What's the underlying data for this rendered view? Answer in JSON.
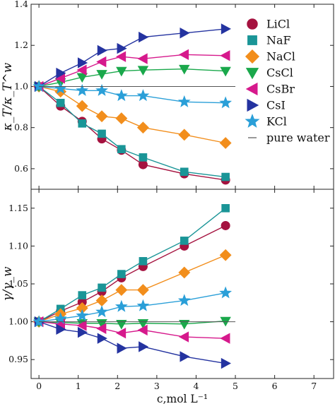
{
  "chart_data": [
    {
      "type": "line",
      "ylabel": "κ_T/κ_T^w",
      "ylim": [
        0.5,
        1.4
      ],
      "xlim": [
        -0.2,
        7.5
      ],
      "yticks": [
        "0.6",
        "0.8",
        "1.0",
        "1.2",
        "1.4"
      ],
      "grid": false,
      "legend_position": "right",
      "series": [
        {
          "name": "LiCl",
          "color": "#a5123f",
          "marker": "circle",
          "x": [
            0,
            0.55,
            1.1,
            1.6,
            2.1,
            2.65,
            3.7,
            4.75
          ],
          "y": [
            1.0,
            0.905,
            0.83,
            0.745,
            0.69,
            0.62,
            0.575,
            0.545
          ]
        },
        {
          "name": "NaF",
          "color": "#1a9597",
          "marker": "square",
          "x": [
            0,
            0.55,
            1.1,
            1.6,
            2.1,
            2.65,
            3.7,
            4.75
          ],
          "y": [
            1.0,
            0.92,
            0.82,
            0.77,
            0.695,
            0.655,
            0.585,
            0.56
          ]
        },
        {
          "name": "NaCl",
          "color": "#f28e1c",
          "marker": "diamond",
          "x": [
            0,
            0.55,
            1.1,
            1.6,
            2.1,
            2.65,
            3.7,
            4.75
          ],
          "y": [
            1.0,
            0.975,
            0.905,
            0.855,
            0.845,
            0.8,
            0.765,
            0.725
          ]
        },
        {
          "name": "CsCl",
          "color": "#1aa84b",
          "marker": "triangle-down",
          "x": [
            0,
            0.55,
            1.1,
            1.6,
            2.1,
            2.65,
            3.7,
            4.75
          ],
          "y": [
            1.0,
            1.02,
            1.045,
            1.06,
            1.075,
            1.08,
            1.085,
            1.075
          ]
        },
        {
          "name": "CsBr",
          "color": "#d6198c",
          "marker": "triangle-left",
          "x": [
            0,
            0.55,
            1.1,
            1.6,
            2.1,
            2.65,
            3.7,
            4.75
          ],
          "y": [
            1.0,
            1.04,
            1.08,
            1.12,
            1.145,
            1.135,
            1.155,
            1.15
          ]
        },
        {
          "name": "CsI",
          "color": "#2433a0",
          "marker": "triangle-right",
          "x": [
            0,
            0.55,
            1.1,
            1.6,
            2.1,
            2.65,
            3.7,
            4.75
          ],
          "y": [
            1.0,
            1.065,
            1.115,
            1.175,
            1.185,
            1.24,
            1.26,
            1.28
          ]
        },
        {
          "name": "KCl",
          "color": "#2a9fd8",
          "marker": "star",
          "x": [
            0,
            0.55,
            1.1,
            1.6,
            2.1,
            2.65,
            3.7,
            4.75
          ],
          "y": [
            1.0,
            0.99,
            0.98,
            0.98,
            0.955,
            0.955,
            0.925,
            0.92
          ]
        },
        {
          "name": "pure water",
          "color": "#777777",
          "marker": "none",
          "x": [
            0,
            5
          ],
          "y": [
            1.0,
            1.0
          ]
        }
      ]
    },
    {
      "type": "line",
      "ylabel": "γ/γ_w",
      "xlabel": "c,mol L⁻¹",
      "ylim": [
        0.925,
        1.175
      ],
      "xlim": [
        -0.2,
        7.5
      ],
      "xticks": [
        "0",
        "1",
        "2",
        "3",
        "4",
        "5",
        "6",
        "7"
      ],
      "yticks": [
        "0.95",
        "1.00",
        "1.05",
        "1.10",
        "1.15"
      ],
      "grid": false,
      "series": [
        {
          "name": "LiCl",
          "color": "#a5123f",
          "marker": "circle",
          "x": [
            0,
            0.55,
            1.1,
            1.6,
            2.1,
            2.65,
            3.7,
            4.75
          ],
          "y": [
            1.0,
            1.014,
            1.026,
            1.04,
            1.058,
            1.073,
            1.1,
            1.127
          ]
        },
        {
          "name": "NaF",
          "color": "#1a9597",
          "marker": "square",
          "x": [
            0,
            0.55,
            1.1,
            1.6,
            2.1,
            2.65,
            3.7,
            4.75
          ],
          "y": [
            1.0,
            1.017,
            1.035,
            1.045,
            1.063,
            1.08,
            1.107,
            1.15
          ]
        },
        {
          "name": "NaCl",
          "color": "#f28e1c",
          "marker": "diamond",
          "x": [
            0,
            0.55,
            1.1,
            1.6,
            2.1,
            2.65,
            3.7,
            4.75
          ],
          "y": [
            1.0,
            1.01,
            1.018,
            1.028,
            1.042,
            1.042,
            1.065,
            1.088
          ]
        },
        {
          "name": "CsCl",
          "color": "#1aa84b",
          "marker": "triangle-down",
          "x": [
            0,
            0.55,
            1.1,
            1.6,
            2.1,
            2.65,
            3.7,
            4.75
          ],
          "y": [
            1.0,
            0.999,
            0.998,
            0.998,
            0.997,
            0.998,
            0.997,
            1.001
          ]
        },
        {
          "name": "CsBr",
          "color": "#d6198c",
          "marker": "triangle-left",
          "x": [
            0,
            0.55,
            1.1,
            1.6,
            2.1,
            2.65,
            3.7,
            4.75
          ],
          "y": [
            1.0,
            0.997,
            0.995,
            0.991,
            0.985,
            0.989,
            0.98,
            0.978
          ]
        },
        {
          "name": "CsI",
          "color": "#2433a0",
          "marker": "triangle-right",
          "x": [
            0,
            0.55,
            1.1,
            1.6,
            2.1,
            2.65,
            3.7,
            4.75
          ],
          "y": [
            1.0,
            0.99,
            0.986,
            0.978,
            0.965,
            0.967,
            0.954,
            0.945
          ]
        },
        {
          "name": "KCl",
          "color": "#2a9fd8",
          "marker": "star",
          "x": [
            0,
            0.55,
            1.1,
            1.6,
            2.1,
            2.65,
            3.7,
            4.75
          ],
          "y": [
            1.0,
            1.004,
            1.008,
            1.013,
            1.02,
            1.021,
            1.028,
            1.038
          ]
        },
        {
          "name": "pure water",
          "color": "#777777",
          "marker": "none",
          "x": [
            0,
            5
          ],
          "y": [
            1.0,
            1.0
          ]
        }
      ]
    }
  ]
}
